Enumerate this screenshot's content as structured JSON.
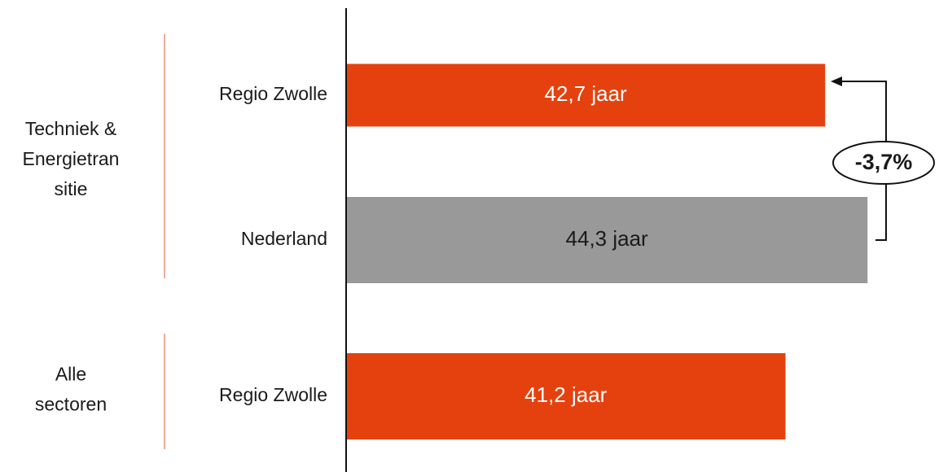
{
  "chart_data": {
    "type": "hbar",
    "categories": [
      "Regio Zwolle",
      "Nederland",
      "Regio Zwolle"
    ],
    "values": [
      42.7,
      44.3,
      41.2
    ],
    "value_labels": [
      "42,7 jaar",
      "44,3 jaar",
      "41,2 jaar"
    ],
    "colors": [
      "#e5410f",
      "#999999",
      "#e5410f"
    ],
    "groups": [
      {
        "label": [
          "Techniek &",
          "Energietran",
          "sitie"
        ]
      },
      {
        "label": [
          "Alle",
          "sectoren"
        ]
      }
    ],
    "xlim": [
      24.6,
      47
    ],
    "annotation": "-3,7%"
  }
}
